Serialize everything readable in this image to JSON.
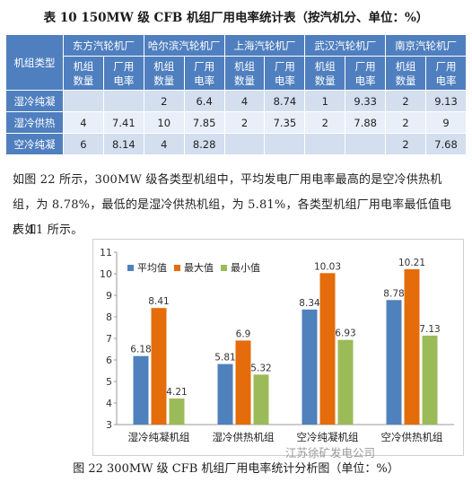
{
  "table": {
    "caption": "表 10   150MW 级 CFB 机组厂用电率统计表（按汽机分、单位：%）",
    "row_header_label": "机组类型",
    "plants": [
      "东方汽轮机厂",
      "哈尔滨汽轮机厂",
      "上海汽轮机厂",
      "武汉汽轮机厂",
      "南京汽轮机厂"
    ],
    "sub_headers": [
      "机组数量",
      "厂用电率"
    ],
    "rows": [
      {
        "type": "湿冷纯凝",
        "cells": [
          "",
          "",
          "2",
          "6.4",
          "4",
          "8.74",
          "1",
          "9.33",
          "2",
          "9.13"
        ]
      },
      {
        "type": "湿冷供热",
        "cells": [
          "4",
          "7.41",
          "10",
          "7.85",
          "2",
          "7.35",
          "2",
          "7.88",
          "2",
          "9"
        ]
      },
      {
        "type": "空冷纯凝",
        "cells": [
          "6",
          "8.14",
          "4",
          "8.28",
          "",
          "",
          "",
          "",
          "2",
          "7.68"
        ]
      }
    ]
  },
  "paragraph": {
    "line1": "如图 22 所示，300MW 级各类型机组中，平均发电厂用电率最高的是空冷供热机",
    "line2": "组，为 8.78%，最低的是湿冷供热机组，为 5.81%，各类型机组厂用电率最低值电厂如",
    "line3": "表 11 所示。"
  },
  "chart_data": {
    "type": "bar",
    "categories": [
      "湿冷纯凝机组",
      "湿冷供热机组",
      "空冷纯凝机组",
      "空冷供热机组"
    ],
    "series": [
      {
        "name": "平均值",
        "values": [
          6.18,
          5.81,
          8.34,
          8.78
        ],
        "color": "#4f81bd"
      },
      {
        "name": "最大值",
        "values": [
          8.41,
          6.9,
          10.03,
          10.21
        ],
        "color": "#e46c0a"
      },
      {
        "name": "最小值",
        "values": [
          4.21,
          5.32,
          6.93,
          7.13
        ],
        "color": "#9bbb59"
      }
    ],
    "ylim": [
      3,
      11
    ],
    "yticks": [
      "3",
      "4",
      "5",
      "6",
      "7",
      "8",
      "9",
      "10",
      "11"
    ],
    "legend_position": "top-left",
    "grid": false
  },
  "figure": {
    "caption": "图 22   300MW 级 CFB 机组厂用电率统计分析图（单位：%）"
  },
  "watermark": "江苏徐矿发电公司"
}
